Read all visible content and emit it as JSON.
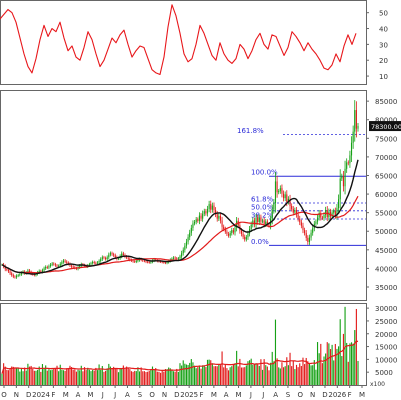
{
  "chart_data": [
    {
      "panel": "rsi",
      "type": "line",
      "y_ticks": [
        10,
        20,
        30,
        40,
        50
      ],
      "ylim": [
        5,
        58
      ],
      "series": [
        {
          "color": "#e8171b",
          "x": [
            0,
            4,
            8,
            12,
            16,
            20,
            24,
            28,
            32,
            36,
            40,
            44,
            48,
            52,
            56,
            60,
            64,
            68,
            72,
            76,
            80,
            84,
            88,
            92,
            96,
            100,
            104,
            108,
            112,
            116,
            120,
            124,
            128,
            132,
            136,
            140,
            144,
            148,
            152,
            156,
            160,
            164,
            168,
            172,
            176,
            180,
            184,
            188,
            192,
            196,
            200,
            204,
            208,
            212,
            216,
            220,
            224,
            228,
            232,
            236,
            240,
            244,
            248,
            252,
            256,
            260,
            264,
            268,
            272,
            276,
            280,
            284,
            288,
            292,
            296,
            300,
            304,
            308,
            312,
            316,
            320,
            324,
            328,
            332,
            336,
            340,
            344,
            348,
            352,
            356
          ],
          "values": [
            46,
            49,
            52,
            50,
            44,
            34,
            24,
            16,
            12,
            21,
            33,
            42,
            35,
            40,
            38,
            44,
            34,
            26,
            29,
            22,
            20,
            28,
            38,
            33,
            24,
            16,
            20,
            27,
            34,
            31,
            36,
            39,
            30,
            22,
            26,
            29,
            28,
            21,
            14,
            12,
            11,
            22,
            41,
            55,
            48,
            37,
            24,
            19,
            21,
            30,
            42,
            37,
            30,
            23,
            20,
            31,
            24,
            20,
            18,
            21,
            30,
            27,
            21,
            26,
            33,
            37,
            30,
            27,
            36,
            35,
            29,
            23,
            28,
            38,
            35,
            31,
            26,
            31,
            27,
            24,
            20,
            15,
            14,
            17,
            24,
            19,
            29,
            36,
            30,
            37
          ]
        }
      ]
    },
    {
      "panel": "price",
      "type": "candlestick",
      "ylabel": "",
      "y_ticks": [
        35000,
        40000,
        45000,
        50000,
        55000,
        60000,
        65000,
        70000,
        75000,
        80000,
        85000
      ],
      "ylim": [
        31500,
        88000
      ],
      "last_price_label": "78300.00",
      "fibonacci": [
        {
          "label": "161.8%",
          "value": 76000
        },
        {
          "label": "100.0%",
          "value": 64800
        },
        {
          "label": "61.8%",
          "value": 57600
        },
        {
          "label": "50.0%",
          "value": 55500
        },
        {
          "label": "38.2%",
          "value": 53300
        },
        {
          "label": "0.0%",
          "value": 46200
        }
      ],
      "close": [
        41000,
        40500,
        39800,
        39600,
        39200,
        38700,
        38200,
        37800,
        37600,
        38000,
        38200,
        38400,
        38800,
        39100,
        38700,
        38900,
        39400,
        39000,
        38600,
        38400,
        38200,
        38500,
        38900,
        39300,
        39100,
        39500,
        40000,
        40400,
        40200,
        40600,
        41000,
        41300,
        41100,
        40800,
        40500,
        40700,
        41200,
        41700,
        42100,
        41800,
        41500,
        41200,
        40800,
        40500,
        40300,
        40100,
        39900,
        40300,
        40700,
        41100,
        40900,
        40700,
        40500,
        40800,
        41100,
        41400,
        41700,
        41500,
        41300,
        41600,
        42000,
        42500,
        43000,
        42800,
        42500,
        43000,
        43700,
        44100,
        43800,
        43500,
        43000,
        42600,
        42800,
        43300,
        44000,
        43600,
        43200,
        42900,
        42600,
        42300,
        42100,
        41900,
        41800,
        42000,
        42200,
        42500,
        42300,
        42100,
        42000,
        41800,
        41700,
        41600,
        41800,
        42100,
        42400,
        42200,
        42000,
        41900,
        41800,
        41700,
        41600,
        41500,
        41700,
        42000,
        42300,
        42600,
        42900,
        42700,
        42500,
        42700,
        43200,
        44100,
        45000,
        46100,
        47200,
        48400,
        49600,
        50900,
        52100,
        52500,
        53200,
        52800,
        54200,
        53400,
        54700,
        55400,
        54800,
        56000,
        57300,
        55800,
        56900,
        55700,
        54600,
        53400,
        54100,
        52900,
        51200,
        50600,
        49900,
        49300,
        48800,
        49500,
        50300,
        49700,
        51000,
        52800,
        51600,
        50200,
        49300,
        48500,
        47800,
        48400,
        49400,
        50600,
        51800,
        52900,
        51800,
        53600,
        52500,
        53700,
        52600,
        52900,
        51800,
        52600,
        51900,
        51500,
        53200,
        55800,
        57600,
        63400,
        60500,
        60800,
        61600,
        60100,
        58900,
        59900,
        57900,
        58700,
        56800,
        56000,
        55000,
        55700,
        54500,
        53400,
        52400,
        51500,
        50300,
        49500,
        48200,
        47100,
        48300,
        49600,
        50800,
        52000,
        52600,
        53700,
        54900,
        53700,
        53500,
        54400,
        55700,
        53800,
        55200,
        54000,
        55000,
        55500,
        54200,
        56200,
        58600,
        64200,
        64800,
        62100,
        66800,
        68500,
        68300,
        70400,
        73800,
        76800,
        82600,
        77600,
        78300
      ]
    },
    {
      "panel": "volume",
      "type": "bar",
      "y_ticks": [
        5000,
        10000,
        15000,
        20000,
        25000,
        30000
      ],
      "ylim": [
        0,
        32000
      ],
      "unit_label": "x100"
    }
  ],
  "x_axis": {
    "labels": [
      "O",
      "N",
      "D",
      "2024",
      "F",
      "M",
      "A",
      "M",
      "J",
      "J",
      "A",
      "S",
      "O",
      "N",
      "D",
      "2025",
      "F",
      "M",
      "A",
      "M",
      "J",
      "J",
      "A",
      "S",
      "O",
      "N",
      "D",
      "2026",
      "F",
      "M"
    ]
  }
}
